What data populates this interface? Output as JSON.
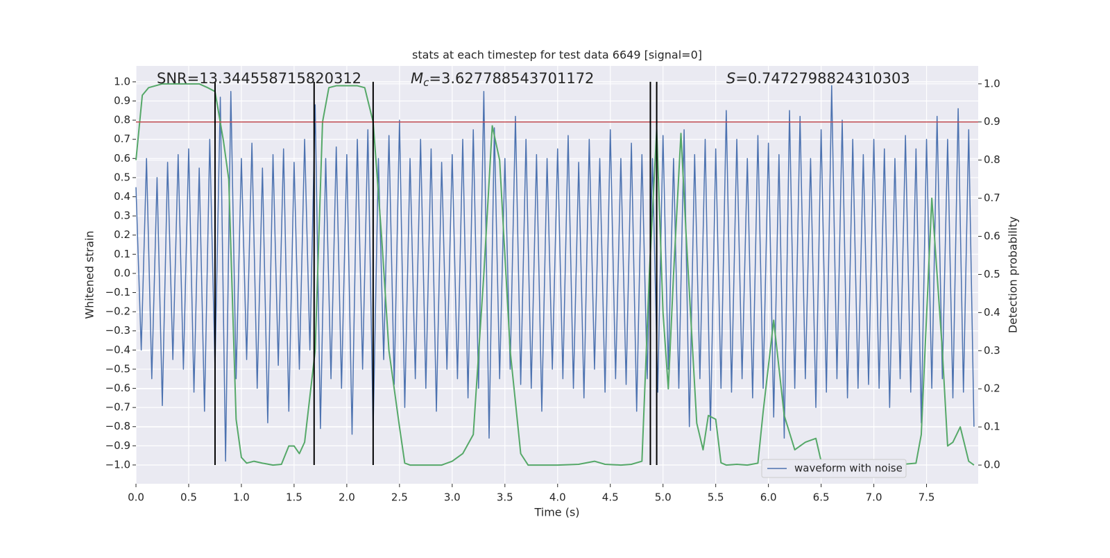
{
  "chart_data": {
    "type": "line",
    "title": "stats at each timestep for test data 6649 [signal=0]",
    "xlabel": "Time (s)",
    "ylabel": "Whitened strain",
    "y2label": "Detection probability",
    "annotations": [
      {
        "text": "SNR=13.344558715820312"
      },
      {
        "symbol": "M",
        "subscript": "c",
        "text": "=3.627788543701172"
      },
      {
        "symbol": "S",
        "text": "=0.7472798824310303"
      }
    ],
    "xlim": [
      0,
      7.99
    ],
    "ylim": [
      -1.098,
      1.083
    ],
    "y2lim": [
      -0.049,
      1.047
    ],
    "xticks": [
      {
        "value": 0,
        "label": "0.0"
      },
      {
        "value": 0.5,
        "label": "0.5"
      },
      {
        "value": 1,
        "label": "1.0"
      },
      {
        "value": 1.5,
        "label": "1.5"
      },
      {
        "value": 2,
        "label": "2.0"
      },
      {
        "value": 2.5,
        "label": "2.5"
      },
      {
        "value": 3,
        "label": "3.0"
      },
      {
        "value": 3.5,
        "label": "3.5"
      },
      {
        "value": 4,
        "label": "4.0"
      },
      {
        "value": 4.5,
        "label": "4.5"
      },
      {
        "value": 5,
        "label": "5.0"
      },
      {
        "value": 5.5,
        "label": "5.5"
      },
      {
        "value": 6,
        "label": "6.0"
      },
      {
        "value": 6.5,
        "label": "6.5"
      },
      {
        "value": 7,
        "label": "7.0"
      },
      {
        "value": 7.5,
        "label": "7.5"
      }
    ],
    "yticks": [
      {
        "value": -1,
        "label": "−1.0"
      },
      {
        "value": -0.9,
        "label": "−0.9"
      },
      {
        "value": -0.8,
        "label": "−0.8"
      },
      {
        "value": -0.7,
        "label": "−0.7"
      },
      {
        "value": -0.6,
        "label": "−0.6"
      },
      {
        "value": -0.5,
        "label": "−0.5"
      },
      {
        "value": -0.4,
        "label": "−0.4"
      },
      {
        "value": -0.3,
        "label": "−0.3"
      },
      {
        "value": -0.2,
        "label": "−0.2"
      },
      {
        "value": -0.1,
        "label": "−0.1"
      },
      {
        "value": 0,
        "label": "0.0"
      },
      {
        "value": 0.1,
        "label": "0.1"
      },
      {
        "value": 0.2,
        "label": "0.2"
      },
      {
        "value": 0.3,
        "label": "0.3"
      },
      {
        "value": 0.4,
        "label": "0.4"
      },
      {
        "value": 0.5,
        "label": "0.5"
      },
      {
        "value": 0.6,
        "label": "0.6"
      },
      {
        "value": 0.7,
        "label": "0.7"
      },
      {
        "value": 0.8,
        "label": "0.8"
      },
      {
        "value": 0.9,
        "label": "0.9"
      },
      {
        "value": 1,
        "label": "1.0"
      }
    ],
    "y2ticks": [
      {
        "value": 0,
        "label": "0.0"
      },
      {
        "value": 0.1,
        "label": "0.1"
      },
      {
        "value": 0.2,
        "label": "0.2"
      },
      {
        "value": 0.3,
        "label": "0.3"
      },
      {
        "value": 0.4,
        "label": "0.4"
      },
      {
        "value": 0.5,
        "label": "0.5"
      },
      {
        "value": 0.6,
        "label": "0.6"
      },
      {
        "value": 0.7,
        "label": "0.7"
      },
      {
        "value": 0.8,
        "label": "0.8"
      },
      {
        "value": 0.9,
        "label": "0.9"
      },
      {
        "value": 1,
        "label": "1.0"
      }
    ],
    "grid": true,
    "legend": "lower right",
    "series": [
      {
        "name": "waveform with noise",
        "color": "#4c72b0",
        "x": [
          0,
          0.05,
          0.1,
          0.15,
          0.2,
          0.25,
          0.3,
          0.35,
          0.4,
          0.45,
          0.5,
          0.55,
          0.6,
          0.65,
          0.7,
          0.75,
          0.8,
          0.85,
          0.9,
          0.95,
          1,
          1.05,
          1.1,
          1.15,
          1.2,
          1.25,
          1.3,
          1.35,
          1.4,
          1.45,
          1.5,
          1.55,
          1.6,
          1.65,
          1.7,
          1.75,
          1.8,
          1.85,
          1.9,
          1.95,
          2,
          2.05,
          2.1,
          2.15,
          2.2,
          2.25,
          2.3,
          2.35,
          2.4,
          2.45,
          2.5,
          2.55,
          2.6,
          2.65,
          2.7,
          2.75,
          2.8,
          2.85,
          2.9,
          2.95,
          3,
          3.05,
          3.1,
          3.15,
          3.2,
          3.25,
          3.3,
          3.35,
          3.4,
          3.45,
          3.5,
          3.55,
          3.6,
          3.65,
          3.7,
          3.75,
          3.8,
          3.85,
          3.9,
          3.95,
          4,
          4.05,
          4.1,
          4.15,
          4.2,
          4.25,
          4.3,
          4.35,
          4.4,
          4.45,
          4.5,
          4.55,
          4.6,
          4.65,
          4.7,
          4.75,
          4.8,
          4.85,
          4.9,
          4.95,
          5,
          5.05,
          5.1,
          5.15,
          5.2,
          5.25,
          5.3,
          5.35,
          5.4,
          5.45,
          5.5,
          5.55,
          5.6,
          5.65,
          5.7,
          5.75,
          5.8,
          5.85,
          5.9,
          5.95,
          6,
          6.05,
          6.1,
          6.15,
          6.2,
          6.25,
          6.3,
          6.35,
          6.4,
          6.45,
          6.5,
          6.55,
          6.6,
          6.65,
          6.7,
          6.75,
          6.8,
          6.85,
          6.9,
          6.95,
          7,
          7.05,
          7.1,
          7.15,
          7.2,
          7.25,
          7.3,
          7.35,
          7.4,
          7.45,
          7.5,
          7.55,
          7.6,
          7.65,
          7.7,
          7.75,
          7.8,
          7.85,
          7.9,
          7.95
        ],
        "values": [
          0.45,
          -0.4,
          0.6,
          -0.55,
          0.5,
          -0.69,
          0.58,
          -0.45,
          0.62,
          -0.5,
          0.65,
          -0.62,
          0.55,
          -0.72,
          0.7,
          -0.5,
          0.92,
          -0.98,
          0.95,
          -0.55,
          0.6,
          -0.45,
          0.68,
          -0.6,
          0.55,
          -0.78,
          0.62,
          -0.48,
          0.65,
          -0.72,
          0.58,
          -0.5,
          0.7,
          -0.4,
          0.88,
          -0.81,
          0.6,
          -0.55,
          0.66,
          -0.6,
          0.62,
          -0.84,
          0.7,
          -0.5,
          0.75,
          -0.82,
          0.6,
          -0.45,
          0.72,
          -0.58,
          0.8,
          -0.7,
          0.6,
          -0.55,
          0.7,
          -0.6,
          0.65,
          -0.72,
          0.58,
          -0.5,
          0.62,
          -0.55,
          0.7,
          -0.65,
          0.75,
          -0.6,
          0.95,
          -0.86,
          0.76,
          -0.55,
          0.6,
          -0.5,
          0.82,
          -0.58,
          0.7,
          -0.6,
          0.62,
          -0.72,
          0.6,
          -0.5,
          0.65,
          -0.55,
          0.72,
          -0.6,
          0.58,
          -0.65,
          0.7,
          -0.5,
          0.6,
          -0.62,
          0.75,
          -0.55,
          0.6,
          -0.58,
          0.68,
          -0.72,
          0.62,
          -0.55,
          0.6,
          -0.62,
          0.72,
          -0.5,
          0.6,
          -0.6,
          0.75,
          -0.8,
          0.62,
          -0.55,
          0.7,
          -0.82,
          0.65,
          -0.6,
          0.85,
          -0.62,
          0.7,
          -0.55,
          0.6,
          -0.65,
          0.72,
          -0.6,
          0.68,
          -0.75,
          0.62,
          -0.86,
          0.85,
          -0.6,
          0.82,
          -0.55,
          0.6,
          -0.7,
          0.75,
          -0.62,
          0.98,
          -0.55,
          0.8,
          -0.65,
          0.7,
          -0.6,
          0.62,
          -0.58,
          0.7,
          -0.6,
          0.65,
          -0.7,
          0.6,
          -0.55,
          0.72,
          -0.62,
          0.65,
          -0.78,
          0.7,
          -0.6,
          0.82,
          -0.55,
          0.7,
          -0.65,
          0.86,
          -0.62,
          0.75,
          -0.8
        ]
      },
      {
        "color": "#55a868",
        "axis": "y2",
        "x": [
          0,
          0.06,
          0.12,
          0.25,
          0.5,
          0.6,
          0.68,
          0.75,
          0.83,
          0.88,
          0.95,
          1,
          1.05,
          1.12,
          1.2,
          1.3,
          1.38,
          1.45,
          1.5,
          1.55,
          1.6,
          1.7,
          1.77,
          1.83,
          1.9,
          2,
          2.1,
          2.17,
          2.25,
          2.33,
          2.4,
          2.5,
          2.55,
          2.6,
          2.7,
          2.8,
          2.9,
          3,
          3.1,
          3.2,
          3.3,
          3.38,
          3.45,
          3.55,
          3.65,
          3.72,
          3.8,
          4,
          4.2,
          4.35,
          4.45,
          4.6,
          4.7,
          4.8,
          4.87,
          4.94,
          5,
          5.05,
          5.1,
          5.17,
          5.22,
          5.32,
          5.38,
          5.43,
          5.5,
          5.55,
          5.6,
          5.7,
          5.8,
          5.9,
          5.95,
          6.05,
          6.15,
          6.25,
          6.35,
          6.45,
          6.5,
          6.6,
          6.8,
          7,
          7.2,
          7.4,
          7.45,
          7.55,
          7.65,
          7.7,
          7.75,
          7.82,
          7.9,
          7.95
        ],
        "values": [
          0.8,
          0.97,
          0.99,
          1,
          1,
          1,
          0.99,
          0.98,
          0.85,
          0.75,
          0.12,
          0.02,
          0.005,
          0.01,
          0.005,
          0,
          0.002,
          0.05,
          0.05,
          0.03,
          0.06,
          0.3,
          0.9,
          0.99,
          0.995,
          0.995,
          0.995,
          0.99,
          0.9,
          0.6,
          0.3,
          0.1,
          0.005,
          0,
          0,
          0,
          0,
          0.01,
          0.03,
          0.08,
          0.5,
          0.89,
          0.8,
          0.3,
          0.03,
          0,
          0,
          0,
          0.002,
          0.01,
          0.002,
          0,
          0.002,
          0.01,
          0.5,
          0.88,
          0.4,
          0.2,
          0.5,
          0.87,
          0.6,
          0.11,
          0.04,
          0.13,
          0.12,
          0.006,
          0,
          0.002,
          0,
          0.005,
          0.14,
          0.38,
          0.13,
          0.04,
          0.06,
          0.07,
          0.01,
          0,
          0,
          0.001,
          0,
          0.005,
          0.08,
          0.7,
          0.3,
          0.05,
          0.06,
          0.1,
          0.01,
          0
        ]
      }
    ],
    "hlines": [
      {
        "value": 0.9,
        "axis": "y2",
        "color": "#c44e52"
      }
    ],
    "vlines": {
      "color": "#000000",
      "values": [
        0.75,
        1.69,
        2.25,
        4.88,
        4.94
      ]
    }
  }
}
